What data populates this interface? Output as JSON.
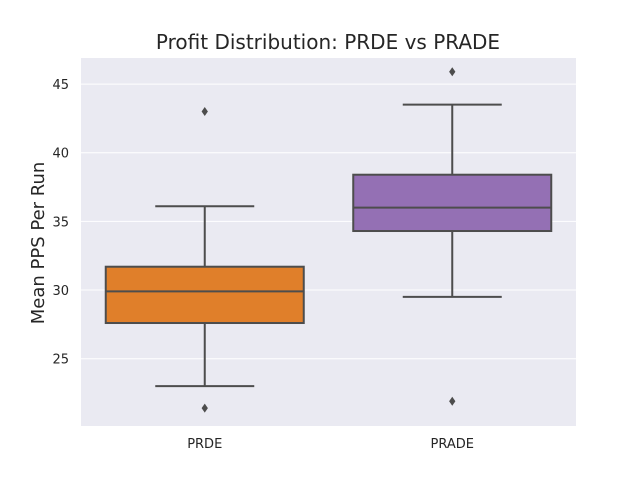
{
  "chart_data": {
    "type": "box",
    "title": "Profit Distribution: PRDE vs PRADE",
    "xlabel": "",
    "ylabel": "Mean PPS Per Run",
    "ylim": [
      20.1,
      46.9
    ],
    "yticks": [
      25,
      30,
      35,
      40,
      45
    ],
    "ytick_labels": [
      "25",
      "30",
      "35",
      "40",
      "45"
    ],
    "categories": [
      "PRDE",
      "PRADE"
    ],
    "grid": true,
    "background": "#eaeaf2",
    "line_color": "#4d4d4d",
    "boxes": [
      {
        "category": "PRDE",
        "color": "#e07f2a",
        "whisker_low": 23.0,
        "q1": 27.6,
        "median": 29.9,
        "q3": 31.7,
        "whisker_high": 36.1,
        "outliers": [
          43.0,
          21.4
        ]
      },
      {
        "category": "PRADE",
        "color": "#9470b4",
        "whisker_low": 29.5,
        "q1": 34.3,
        "median": 36.0,
        "q3": 38.4,
        "whisker_high": 43.5,
        "outliers": [
          45.9,
          21.9
        ]
      }
    ]
  }
}
